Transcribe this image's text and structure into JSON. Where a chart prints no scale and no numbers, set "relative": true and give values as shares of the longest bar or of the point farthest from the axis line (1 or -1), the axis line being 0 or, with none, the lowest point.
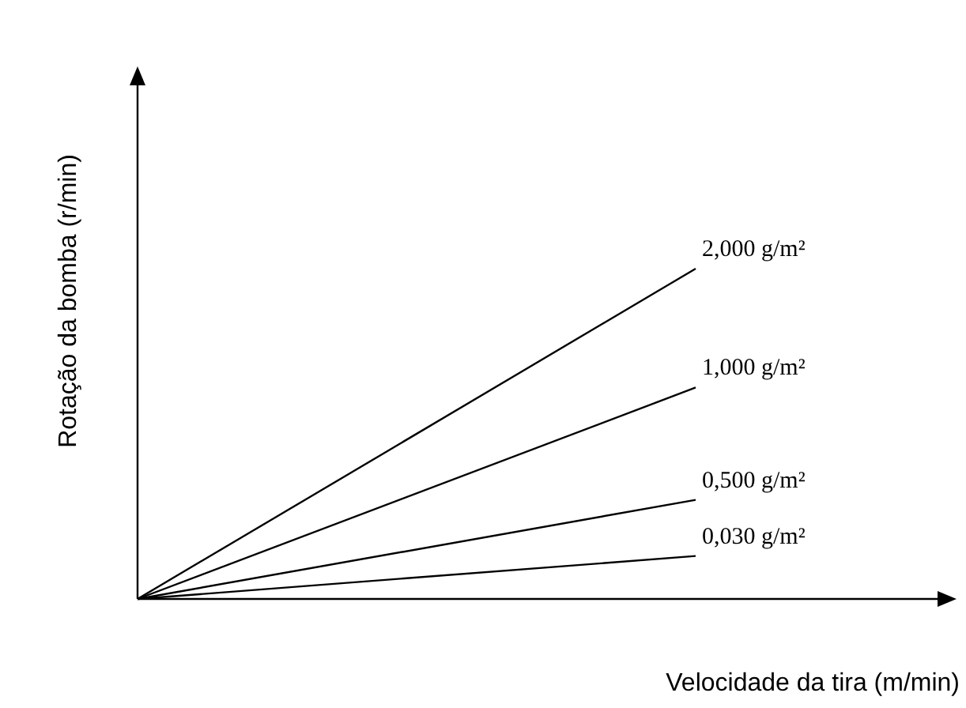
{
  "chart_data": {
    "type": "line",
    "relative": true,
    "xlabel": "Velocidade da tira (m/min)",
    "ylabel": "Rotação da bomba (r/min)",
    "categories": [
      null,
      null
    ],
    "series": [
      {
        "name": "2,000 g/m²",
        "color": "#000000",
        "values": [
          0,
          1
        ]
      },
      {
        "name": "1,000 g/m²",
        "color": "#000000",
        "values": [
          0,
          0.64
        ]
      },
      {
        "name": "0,500 g/m²",
        "color": "#000000",
        "values": [
          0,
          0.3
        ]
      },
      {
        "name": "0,030 g/m²",
        "color": "#000000",
        "values": [
          0,
          0.13
        ]
      }
    ]
  }
}
